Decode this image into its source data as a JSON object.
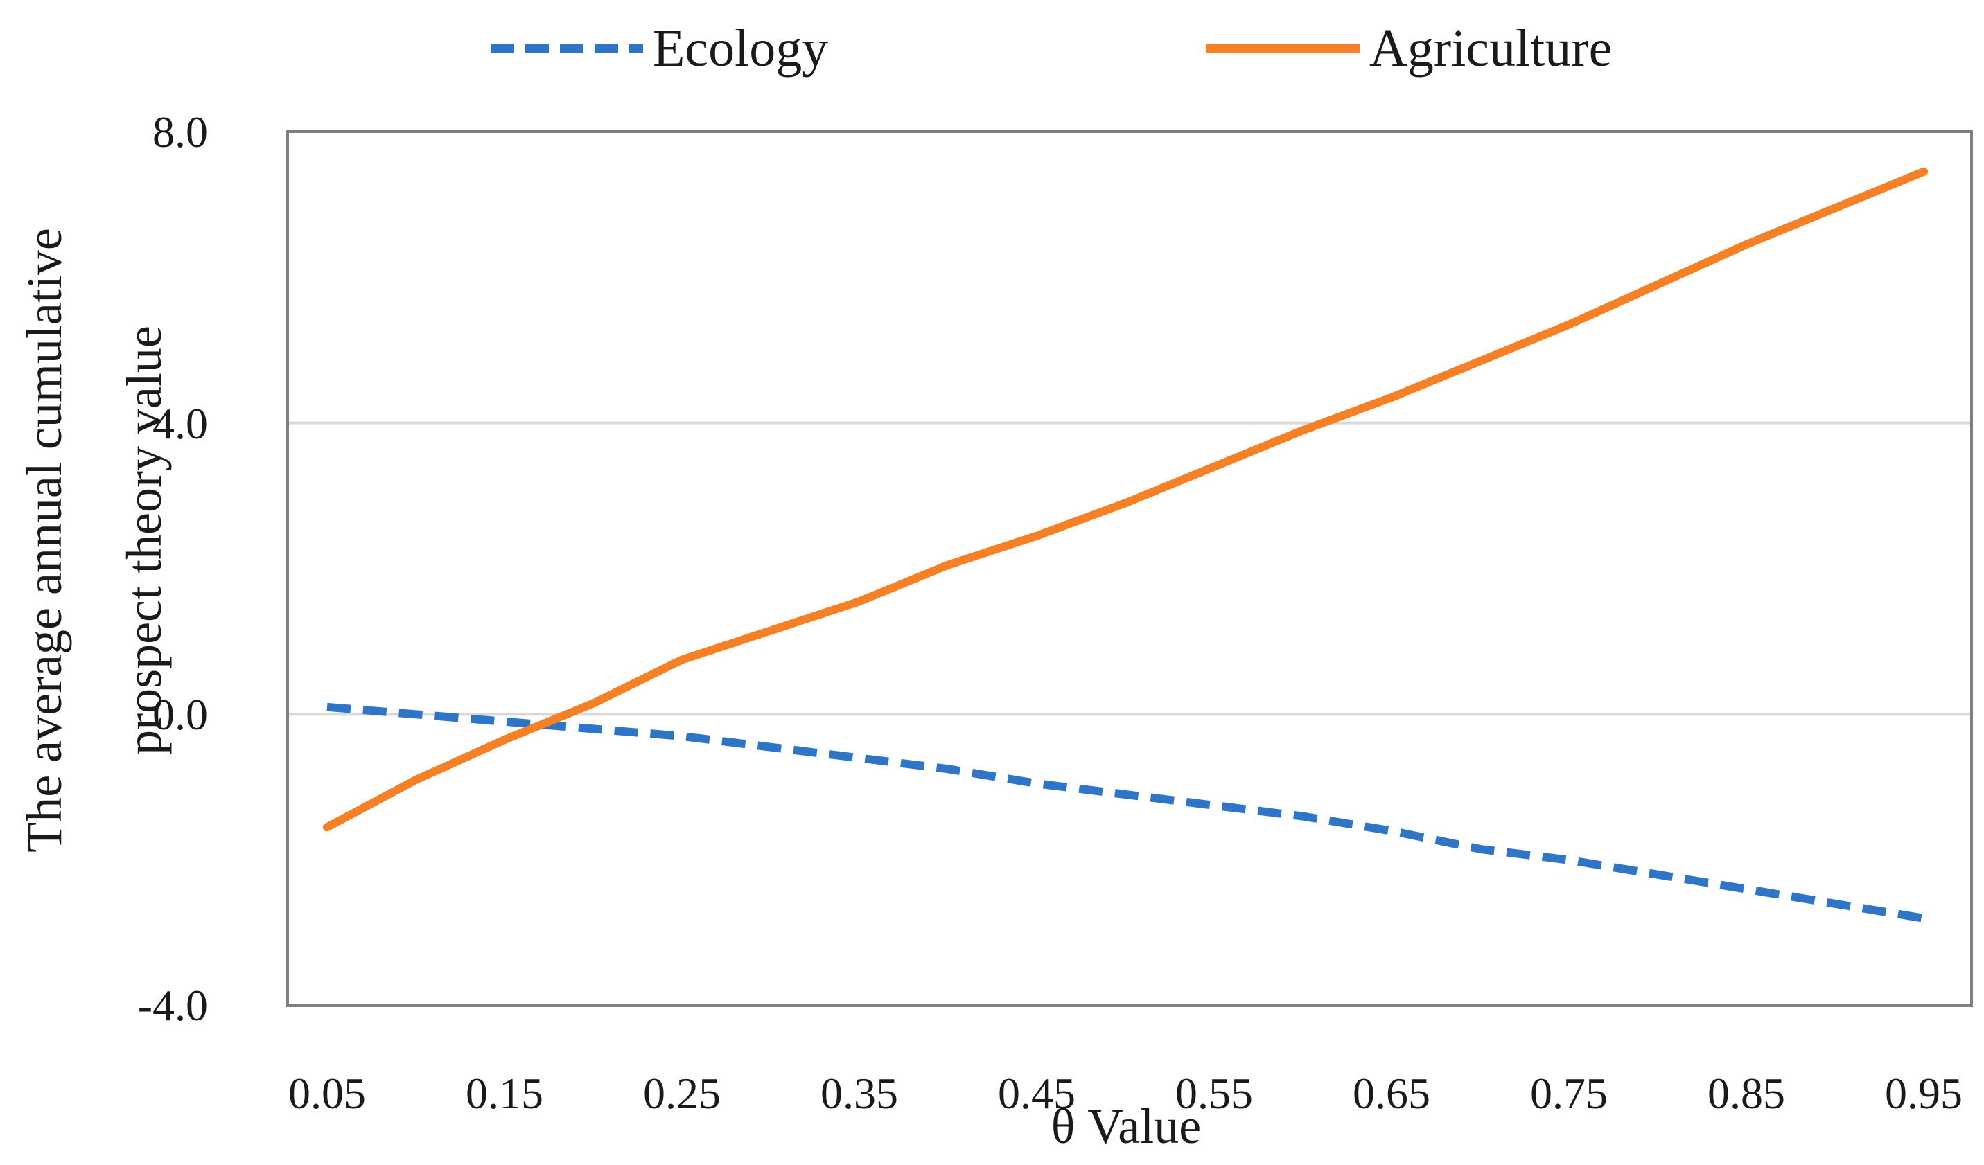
{
  "chart_data": {
    "type": "line",
    "title": "",
    "xlabel": "θ Value",
    "ylabel_lines": [
      "The average annual cumulative",
      "prospect theory value"
    ],
    "x": [
      0.05,
      0.1,
      0.15,
      0.2,
      0.25,
      0.3,
      0.35,
      0.4,
      0.45,
      0.5,
      0.55,
      0.6,
      0.65,
      0.7,
      0.75,
      0.8,
      0.85,
      0.9,
      0.95
    ],
    "x_tick_labels": [
      "0.05",
      "0.15",
      "0.25",
      "0.35",
      "0.45",
      "0.55",
      "0.65",
      "0.75",
      "0.85",
      "0.95"
    ],
    "y_tick_labels": [
      "8.0",
      "4.0",
      "0.0",
      "-4.0"
    ],
    "ylim": [
      -4,
      8
    ],
    "y_ticks": [
      8,
      4,
      0,
      -4
    ],
    "grid": true,
    "legend_position": "top",
    "series": [
      {
        "name": "Ecology",
        "style": "dashed",
        "color": "#2E75C8",
        "values": [
          0.1,
          0.0,
          -0.1,
          -0.2,
          -0.3,
          -0.45,
          -0.6,
          -0.75,
          -0.95,
          -1.1,
          -1.25,
          -1.4,
          -1.6,
          -1.85,
          -2.0,
          -2.2,
          -2.4,
          -2.6,
          -2.8
        ]
      },
      {
        "name": "Agriculture",
        "style": "solid",
        "color": "#F58025",
        "values": [
          -1.55,
          -0.9,
          -0.35,
          0.15,
          0.75,
          1.15,
          1.55,
          2.05,
          2.45,
          2.9,
          3.4,
          3.9,
          4.35,
          4.85,
          5.35,
          5.9,
          6.45,
          6.95,
          7.45
        ]
      }
    ]
  },
  "colors": {
    "axis_frame": "#7f7f7f",
    "gridline": "#d9d9d9"
  }
}
